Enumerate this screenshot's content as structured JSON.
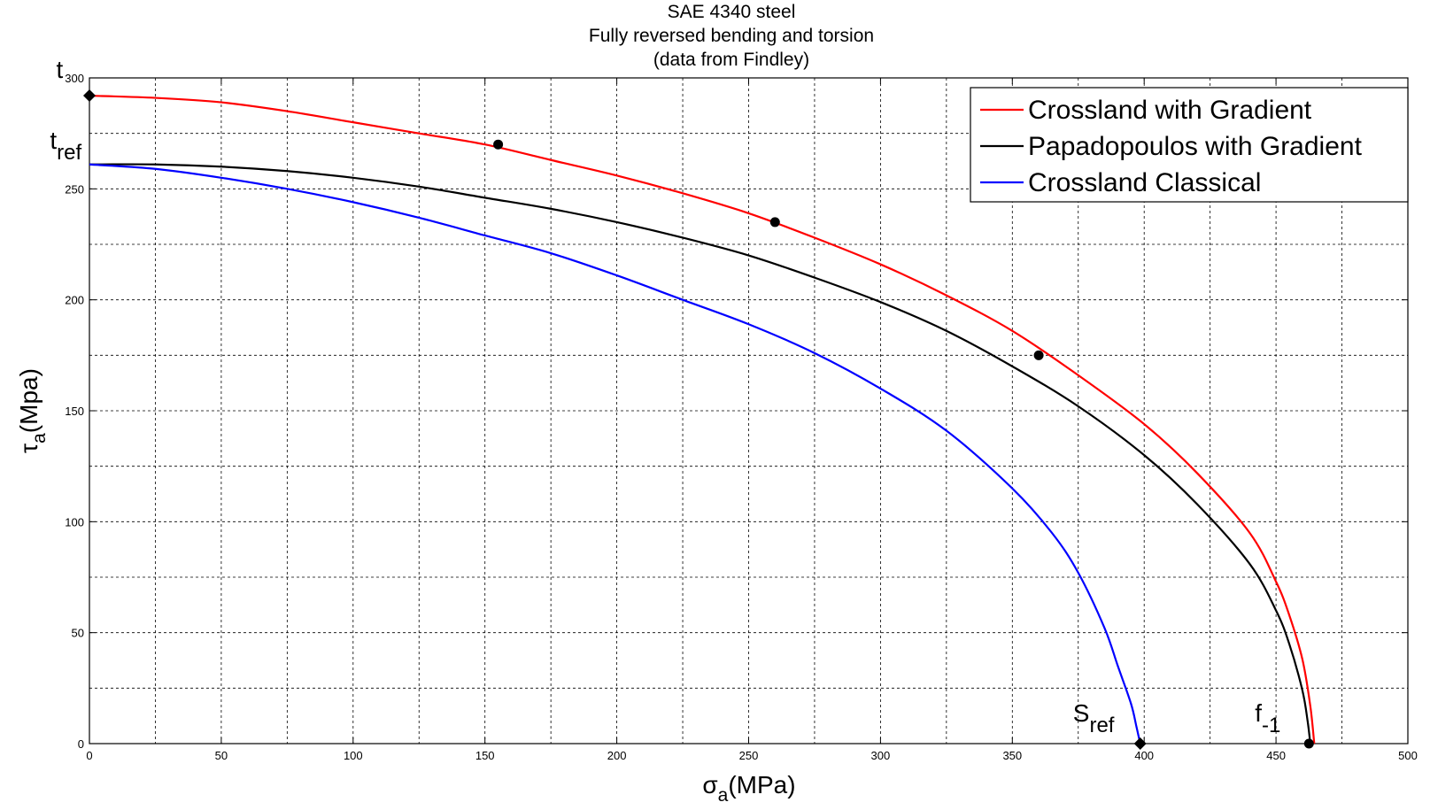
{
  "chart_data": {
    "type": "line",
    "title_lines": [
      "SAE 4340 steel",
      "Fully reversed bending and torsion",
      "(data from Findley)"
    ],
    "xlabel": {
      "main": "σ",
      "sub": "a",
      "rest": "(MPa)"
    },
    "ylabel": {
      "main": "τ",
      "sub": "a",
      "rest": "(Mpa)"
    },
    "xlim": [
      0,
      500
    ],
    "ylim": [
      0,
      300
    ],
    "x_ticks": [
      0,
      50,
      100,
      150,
      200,
      250,
      300,
      350,
      400,
      450,
      500
    ],
    "y_ticks": [
      0,
      50,
      100,
      150,
      200,
      250,
      300
    ],
    "grid": true,
    "legend_position": "top-right",
    "series": [
      {
        "name": "Crossland with Gradient",
        "color": "#ff0000",
        "x": [
          0,
          25,
          50,
          75,
          100,
          125,
          150,
          175,
          200,
          225,
          250,
          275,
          300,
          325,
          350,
          375,
          400,
          420,
          440,
          450,
          455,
          460,
          463,
          464.5
        ],
        "y": [
          292,
          291,
          289,
          285,
          280,
          275,
          270,
          263,
          256,
          248,
          239,
          228,
          216,
          202,
          186,
          166,
          144,
          122,
          95,
          73,
          58,
          38,
          17,
          0
        ]
      },
      {
        "name": "Papadopoulos with Gradient",
        "color": "#000000",
        "x": [
          0,
          25,
          50,
          75,
          100,
          125,
          150,
          175,
          200,
          225,
          250,
          275,
          300,
          325,
          350,
          375,
          400,
          420,
          440,
          450,
          455,
          460,
          462,
          463
        ],
        "y": [
          261,
          261,
          260,
          258,
          255,
          251,
          246,
          241,
          235,
          228,
          220,
          210,
          199,
          186,
          170,
          152,
          130,
          108,
          81,
          60,
          45,
          24,
          10,
          0
        ]
      },
      {
        "name": "Crossland Classical",
        "color": "#0000ff",
        "x": [
          0,
          25,
          50,
          75,
          100,
          125,
          150,
          175,
          200,
          225,
          250,
          275,
          300,
          325,
          350,
          365,
          375,
          385,
          390,
          395,
          397,
          398.5
        ],
        "y": [
          261,
          259,
          255,
          250,
          244,
          237,
          229,
          221,
          211,
          200,
          189,
          176,
          160,
          141,
          115,
          95,
          77,
          52,
          35,
          18,
          8,
          0
        ]
      }
    ],
    "markers": [
      {
        "shape": "diamond",
        "x": 0,
        "y": 292
      },
      {
        "shape": "circle",
        "x": 155,
        "y": 270
      },
      {
        "shape": "circle",
        "x": 260,
        "y": 235
      },
      {
        "shape": "circle",
        "x": 360,
        "y": 175
      },
      {
        "shape": "diamond",
        "x": 398.5,
        "y": 0
      },
      {
        "shape": "circle",
        "x": 462.5,
        "y": 0
      }
    ],
    "annotations": [
      {
        "main": "t",
        "sub": "",
        "x": -10,
        "y": 300,
        "anchor": "end"
      },
      {
        "main": "t",
        "sub": "ref",
        "x": -15,
        "y": 268,
        "anchor": "start"
      },
      {
        "main": "S",
        "sub": "ref",
        "x": 373,
        "y": 10,
        "anchor": "start"
      },
      {
        "main": "f",
        "sub": "-1",
        "x": 442,
        "y": 10,
        "anchor": "start"
      }
    ]
  }
}
